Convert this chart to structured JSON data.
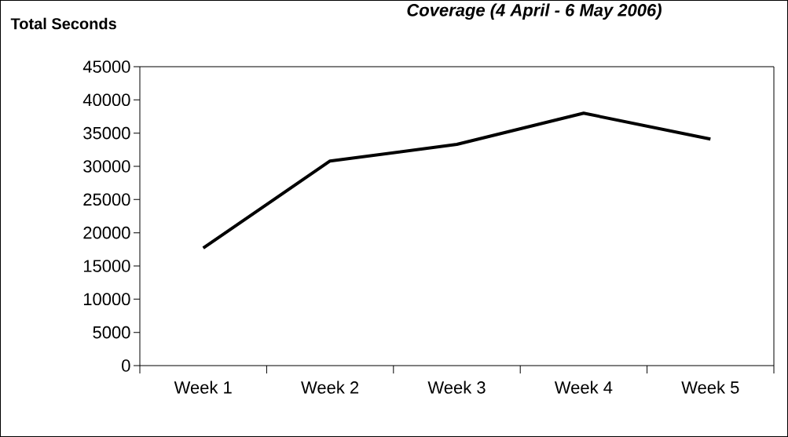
{
  "chart_data": {
    "type": "line",
    "title": "Coverage (4 April - 6 May 2006)",
    "ylabel": "Total Seconds",
    "categories": [
      "Week 1",
      "Week 2",
      "Week 3",
      "Week 4",
      "Week 5"
    ],
    "series": [
      {
        "color": "#000000",
        "values": [
          17700,
          30800,
          33300,
          38000,
          34100
        ]
      }
    ],
    "ylim": [
      0,
      45000
    ],
    "yticks": [
      0,
      5000,
      10000,
      15000,
      20000,
      25000,
      30000,
      35000,
      40000,
      45000
    ],
    "grid": false,
    "legend": false,
    "marker": "none",
    "line_style": "solid"
  }
}
